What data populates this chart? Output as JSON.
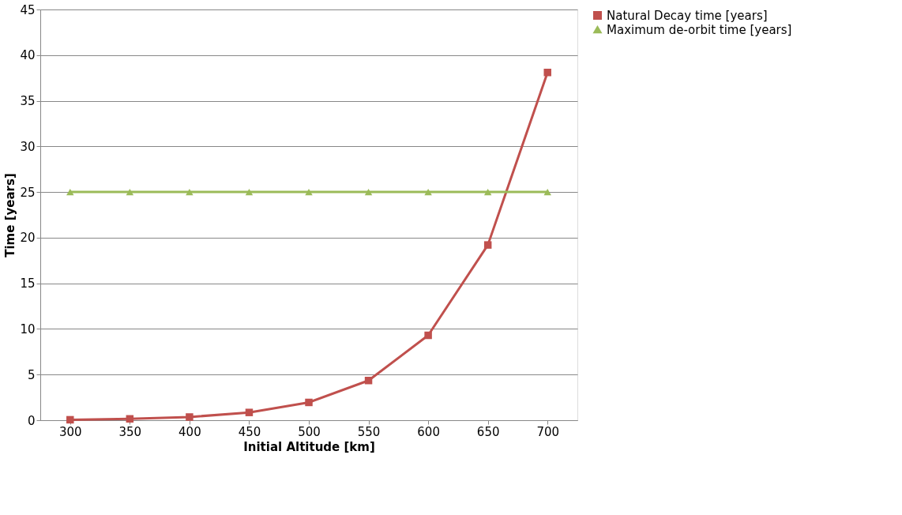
{
  "chart_data": {
    "type": "line",
    "xlabel": "Initial Altitude [km]",
    "ylabel": "Time [years]",
    "categories": [
      "300",
      "350",
      "400",
      "450",
      "500",
      "550",
      "600",
      "650",
      "700"
    ],
    "series": [
      {
        "name": "Natural Decay time [years]",
        "color": "#c0504d",
        "marker": "square",
        "values": [
          0.05,
          0.15,
          0.35,
          0.85,
          1.95,
          4.35,
          9.3,
          19.2,
          38.1
        ]
      },
      {
        "name": "Maximum de-orbit time [years]",
        "color": "#9bbb59",
        "marker": "triangle",
        "values": [
          25,
          25,
          25,
          25,
          25,
          25,
          25,
          25,
          25
        ]
      }
    ],
    "ylim": [
      0,
      45
    ],
    "yticks": [
      0,
      5,
      10,
      15,
      20,
      25,
      30,
      35,
      40,
      45
    ],
    "grid": "y",
    "legend": "right",
    "line_style": "solid"
  }
}
